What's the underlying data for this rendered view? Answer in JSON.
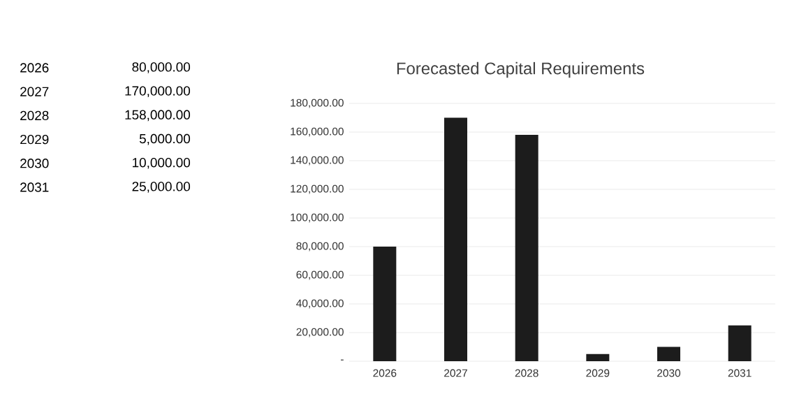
{
  "chart_data": {
    "type": "bar",
    "title": "Forecasted Capital Requirements",
    "categories": [
      "2026",
      "2027",
      "2028",
      "2029",
      "2030",
      "2031"
    ],
    "values": [
      80000,
      170000,
      158000,
      5000,
      10000,
      25000
    ],
    "color": "#1c1c1c",
    "ylim": [
      0,
      180000
    ],
    "yticks": [
      {
        "value": 0,
        "label": "-"
      },
      {
        "value": 20000,
        "label": "20,000.00"
      },
      {
        "value": 40000,
        "label": "40,000.00"
      },
      {
        "value": 60000,
        "label": "60,000.00"
      },
      {
        "value": 80000,
        "label": "80,000.00"
      },
      {
        "value": 100000,
        "label": "100,000.00"
      },
      {
        "value": 120000,
        "label": "120,000.00"
      },
      {
        "value": 140000,
        "label": "140,000.00"
      },
      {
        "value": 160000,
        "label": "160,000.00"
      },
      {
        "value": 180000,
        "label": "180,000.00"
      }
    ],
    "grid": "y",
    "annotations": [
      "2026",
      "80,000.00",
      "2027",
      "170,000.00",
      "2028",
      "158,000.00",
      "2029",
      "5,000.00",
      "2030",
      "10,000.00",
      "2031",
      "25,000.00"
    ]
  }
}
